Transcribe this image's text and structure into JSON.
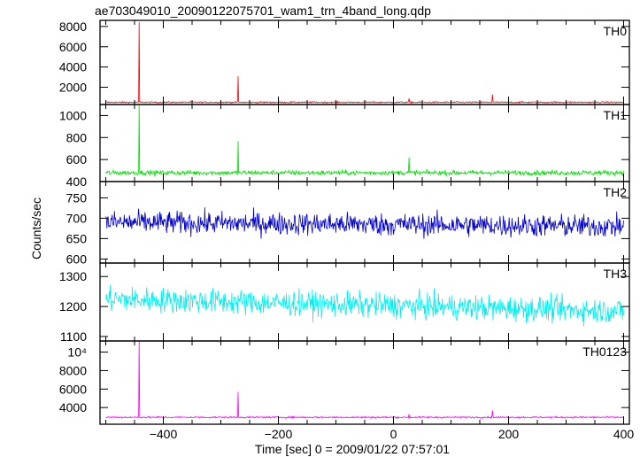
{
  "chart_data": {
    "type": "line",
    "title": "ae703049010_20090122075701_wam1_trn_4band_long.qdp",
    "xlabel": "Time [sec] 0 = 2009/01/22 07:57:01",
    "ylabel": "Counts/sec",
    "xlim": [
      -510,
      410
    ],
    "x_ticks": [
      -400,
      -200,
      0,
      200,
      400
    ],
    "x_tick_labels": [
      "−400",
      "−200",
      "0",
      "200",
      "400"
    ],
    "panels": [
      {
        "name": "TH0",
        "color": "#ff0000",
        "ylim": [
          300,
          8600
        ],
        "y_ticks": [
          2000,
          4000,
          6000,
          8000
        ],
        "y_tick_labels": [
          "2000",
          "4000",
          "6000",
          "8000"
        ],
        "baseline": 520,
        "noise": 70,
        "spikes": [
          {
            "x": -442,
            "y": 8400
          },
          {
            "x": -270,
            "y": 3100
          },
          {
            "x": 27,
            "y": 900
          },
          {
            "x": 172,
            "y": 1300
          }
        ]
      },
      {
        "name": "TH1",
        "color": "#00e000",
        "ylim": [
          400,
          1100
        ],
        "y_ticks": [
          400,
          600,
          800,
          1000
        ],
        "y_tick_labels": [
          "400",
          "600",
          "800",
          "1000"
        ],
        "baseline": 480,
        "noise": 22,
        "spikes": [
          {
            "x": -442,
            "y": 1110
          },
          {
            "x": -270,
            "y": 770
          },
          {
            "x": 27,
            "y": 620
          }
        ]
      },
      {
        "name": "TH2",
        "color": "#0000d0",
        "ylim": [
          590,
          790
        ],
        "y_ticks": [
          600,
          650,
          700,
          750
        ],
        "y_tick_labels": [
          "600",
          "650",
          "700",
          "750"
        ],
        "baseline": 690,
        "trend_end": 680,
        "noise": 28,
        "spikes": []
      },
      {
        "name": "TH3",
        "color": "#00f0f0",
        "ylim": [
          1085,
          1345
        ],
        "y_ticks": [
          1100,
          1200,
          1300
        ],
        "y_tick_labels": [
          "1100",
          "1200",
          "1300"
        ],
        "baseline": 1225,
        "trend_end": 1185,
        "noise": 42,
        "spikes": []
      },
      {
        "name": "TH0123",
        "color": "#ff00ff",
        "ylim": [
          2200,
          11200
        ],
        "y_ticks": [
          4000,
          6000,
          8000,
          10000
        ],
        "y_tick_labels": [
          "4000",
          "6000",
          "8000",
          "10⁴"
        ],
        "baseline": 2950,
        "noise": 90,
        "spikes": [
          {
            "x": -442,
            "y": 11200
          },
          {
            "x": -270,
            "y": 5700
          },
          {
            "x": 27,
            "y": 3300
          },
          {
            "x": 172,
            "y": 3700
          }
        ]
      }
    ]
  }
}
